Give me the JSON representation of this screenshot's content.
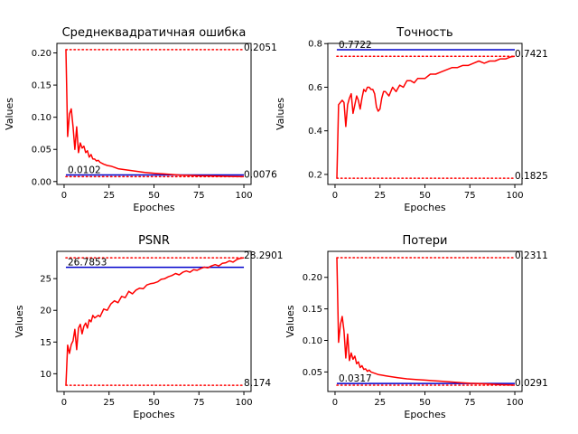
{
  "chart_data": [
    {
      "type": "line",
      "title": "Среднеквадратичная ошибка",
      "xlabel": "Epoches",
      "ylabel": "Values",
      "xlim": [
        -4,
        104
      ],
      "ylim": [
        -0.0045,
        0.2148
      ],
      "xticks": [
        0,
        25,
        50,
        75,
        100
      ],
      "yticks": [
        0.0,
        0.05,
        0.1,
        0.15,
        0.2
      ],
      "ytick_labels": [
        "0.00",
        "0.05",
        "0.10",
        "0.15",
        "0.20"
      ],
      "grid": false,
      "series": [
        {
          "color": "#ff0000",
          "x": [
            1,
            2,
            3,
            4,
            5,
            6,
            7,
            8,
            9,
            10,
            11,
            12,
            13,
            14,
            15,
            16,
            17,
            18,
            19,
            20,
            22,
            24,
            26,
            28,
            30,
            35,
            40,
            45,
            50,
            55,
            60,
            65,
            70,
            75,
            80,
            85,
            90,
            95,
            100
          ],
          "y": [
            0.2051,
            0.07,
            0.105,
            0.113,
            0.085,
            0.05,
            0.085,
            0.045,
            0.06,
            0.052,
            0.055,
            0.045,
            0.048,
            0.038,
            0.042,
            0.035,
            0.035,
            0.032,
            0.033,
            0.03,
            0.027,
            0.025,
            0.024,
            0.022,
            0.02,
            0.018,
            0.016,
            0.014,
            0.013,
            0.012,
            0.011,
            0.01,
            0.0095,
            0.009,
            0.0088,
            0.0085,
            0.0082,
            0.0079,
            0.0076
          ]
        }
      ],
      "reference_lines": [
        {
          "style": "dotted",
          "color": "#ff0000",
          "y": 0.2051,
          "label": "0.2051"
        },
        {
          "style": "dotted",
          "color": "#ff0000",
          "y": 0.0076,
          "label": "0.0076"
        },
        {
          "style": "solid",
          "color": "#0000cc",
          "y": 0.0102,
          "label": "0.0102"
        }
      ]
    },
    {
      "type": "line",
      "title": "Точность",
      "xlabel": "Epoches",
      "ylabel": "Values",
      "xlim": [
        -4,
        104
      ],
      "ylim": [
        0.154,
        0.801
      ],
      "xticks": [
        0,
        25,
        50,
        75,
        100
      ],
      "yticks": [
        0.2,
        0.4,
        0.6,
        0.8
      ],
      "ytick_labels": [
        "0.2",
        "0.4",
        "0.6",
        "0.8"
      ],
      "grid": false,
      "series": [
        {
          "color": "#ff0000",
          "x": [
            1,
            2,
            3,
            4,
            5,
            6,
            7,
            8,
            9,
            10,
            11,
            12,
            13,
            14,
            15,
            16,
            17,
            18,
            19,
            20,
            21,
            22,
            23,
            24,
            25,
            26,
            27,
            28,
            29,
            30,
            32,
            34,
            36,
            38,
            40,
            42,
            44,
            46,
            48,
            50,
            53,
            56,
            59,
            62,
            65,
            68,
            71,
            74,
            77,
            80,
            83,
            86,
            89,
            92,
            95,
            98,
            100
          ],
          "y": [
            0.1825,
            0.52,
            0.53,
            0.54,
            0.53,
            0.42,
            0.52,
            0.55,
            0.57,
            0.48,
            0.52,
            0.56,
            0.54,
            0.5,
            0.55,
            0.59,
            0.58,
            0.6,
            0.6,
            0.59,
            0.59,
            0.57,
            0.51,
            0.49,
            0.5,
            0.55,
            0.58,
            0.58,
            0.57,
            0.56,
            0.6,
            0.58,
            0.61,
            0.6,
            0.63,
            0.63,
            0.62,
            0.64,
            0.64,
            0.64,
            0.66,
            0.66,
            0.67,
            0.68,
            0.69,
            0.69,
            0.7,
            0.7,
            0.71,
            0.72,
            0.71,
            0.72,
            0.72,
            0.73,
            0.73,
            0.74,
            0.7421
          ]
        }
      ],
      "reference_lines": [
        {
          "style": "solid",
          "color": "#0000cc",
          "y": 0.7722,
          "label": "0.7722"
        },
        {
          "style": "dotted",
          "color": "#ff0000",
          "y": 0.7421,
          "label": "0.7421"
        },
        {
          "style": "dotted",
          "color": "#ff0000",
          "y": 0.1825,
          "label": "0.1825"
        }
      ]
    },
    {
      "type": "line",
      "title": "PSNR",
      "xlabel": "Epoches",
      "ylabel": "Values",
      "xlim": [
        -4,
        104
      ],
      "ylim": [
        7.2,
        29.3
      ],
      "xticks": [
        0,
        25,
        50,
        75,
        100
      ],
      "yticks": [
        10,
        15,
        20,
        25
      ],
      "ytick_labels": [
        "10",
        "15",
        "20",
        "25"
      ],
      "grid": false,
      "series": [
        {
          "color": "#ff0000",
          "x": [
            1,
            2,
            3,
            4,
            5,
            6,
            7,
            8,
            9,
            10,
            11,
            12,
            13,
            14,
            15,
            16,
            17,
            18,
            19,
            20,
            22,
            24,
            26,
            28,
            30,
            32,
            34,
            36,
            38,
            40,
            42,
            44,
            46,
            48,
            50,
            52,
            54,
            56,
            58,
            60,
            62,
            64,
            66,
            68,
            70,
            72,
            74,
            76,
            78,
            80,
            82,
            84,
            86,
            88,
            90,
            92,
            94,
            96,
            98,
            100
          ],
          "y": [
            8.174,
            14.5,
            13.2,
            14.6,
            15.2,
            17.0,
            13.8,
            17.2,
            17.8,
            16.3,
            17.5,
            18.0,
            17.2,
            18.5,
            18.2,
            19.2,
            18.8,
            19.0,
            19.2,
            19.0,
            20.2,
            20.0,
            21.0,
            21.5,
            21.2,
            22.2,
            22.0,
            23.0,
            22.6,
            23.2,
            23.5,
            23.4,
            24.0,
            24.2,
            24.3,
            24.5,
            24.9,
            25.0,
            25.3,
            25.5,
            25.8,
            25.6,
            26.0,
            26.2,
            26.0,
            26.4,
            26.3,
            26.6,
            26.8,
            26.7,
            27.0,
            27.2,
            27.0,
            27.4,
            27.5,
            27.8,
            27.6,
            28.0,
            28.2,
            28.2901
          ]
        }
      ],
      "reference_lines": [
        {
          "style": "dotted",
          "color": "#ff0000",
          "y": 28.2901,
          "label": "28.2901"
        },
        {
          "style": "solid",
          "color": "#0000cc",
          "y": 26.7853,
          "label": "26.7853"
        },
        {
          "style": "dotted",
          "color": "#ff0000",
          "y": 8.174,
          "label": "8.174"
        }
      ]
    },
    {
      "type": "line",
      "title": "Потери",
      "xlabel": "Epoches",
      "ylabel": "Values",
      "xlim": [
        -4,
        104
      ],
      "ylim": [
        0.019,
        0.2412
      ],
      "xticks": [
        0,
        25,
        50,
        75,
        100
      ],
      "yticks": [
        0.05,
        0.1,
        0.15,
        0.2
      ],
      "ytick_labels": [
        "0.05",
        "0.10",
        "0.15",
        "0.20"
      ],
      "grid": false,
      "series": [
        {
          "color": "#ff0000",
          "x": [
            1,
            2,
            3,
            4,
            5,
            6,
            7,
            8,
            9,
            10,
            11,
            12,
            13,
            14,
            15,
            16,
            17,
            18,
            19,
            20,
            22,
            24,
            26,
            28,
            30,
            35,
            40,
            45,
            50,
            55,
            60,
            65,
            70,
            75,
            80,
            85,
            90,
            95,
            100
          ],
          "y": [
            0.2311,
            0.097,
            0.125,
            0.138,
            0.115,
            0.072,
            0.11,
            0.068,
            0.08,
            0.07,
            0.075,
            0.063,
            0.066,
            0.057,
            0.06,
            0.054,
            0.055,
            0.051,
            0.053,
            0.05,
            0.048,
            0.046,
            0.045,
            0.044,
            0.043,
            0.041,
            0.039,
            0.038,
            0.037,
            0.036,
            0.035,
            0.034,
            0.033,
            0.032,
            0.0315,
            0.031,
            0.0302,
            0.0296,
            0.0291
          ]
        }
      ],
      "reference_lines": [
        {
          "style": "dotted",
          "color": "#ff0000",
          "y": 0.2311,
          "label": "0.2311"
        },
        {
          "style": "solid",
          "color": "#0000cc",
          "y": 0.0317,
          "label": "0.0317"
        },
        {
          "style": "dotted",
          "color": "#ff0000",
          "y": 0.0291,
          "label": "0.0291"
        }
      ]
    }
  ]
}
